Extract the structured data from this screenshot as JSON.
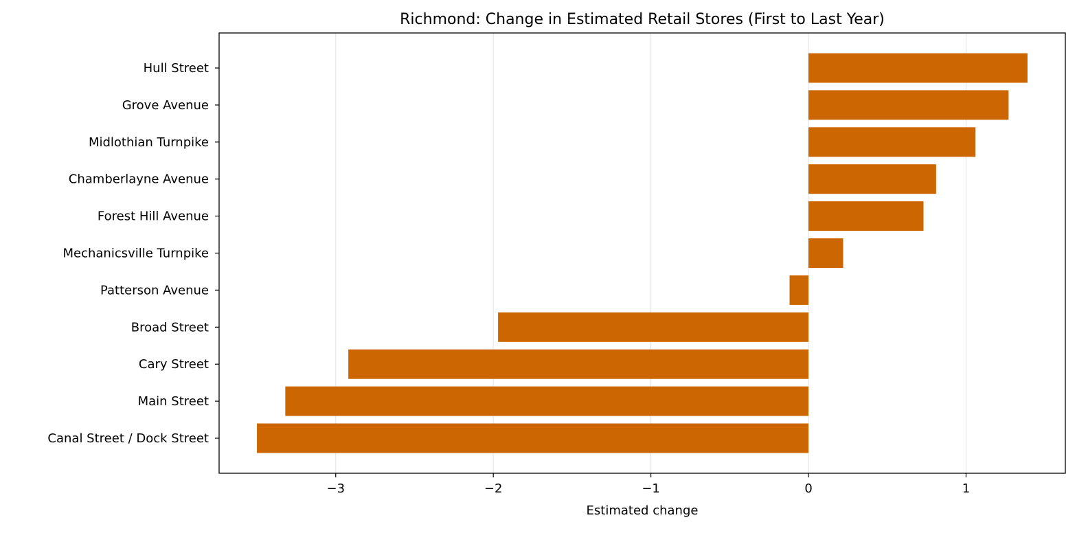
{
  "chart_data": {
    "type": "bar",
    "orientation": "horizontal",
    "title": "Richmond: Change in Estimated Retail Stores (First to Last Year)",
    "xlabel": "Estimated change",
    "ylabel": "",
    "categories": [
      "Hull Street",
      "Grove Avenue",
      "Midlothian Turnpike",
      "Chamberlayne Avenue",
      "Forest Hill Avenue",
      "Mechanicsville Turnpike",
      "Patterson Avenue",
      "Broad Street",
      "Cary Street",
      "Main Street",
      "Canal Street / Dock Street"
    ],
    "values": [
      1.39,
      1.27,
      1.06,
      0.81,
      0.73,
      0.22,
      -0.12,
      -1.97,
      -2.92,
      -3.32,
      -3.5
    ],
    "xlim": [
      -3.74,
      1.63
    ],
    "xticks": [
      -3,
      -2,
      -1,
      0,
      1
    ],
    "xtick_labels": [
      "−3",
      "−2",
      "−1",
      "0",
      "1"
    ],
    "grid": "x",
    "legend": "none",
    "bar_color": "#cc6600",
    "grid_color": "#e6e6e6"
  }
}
